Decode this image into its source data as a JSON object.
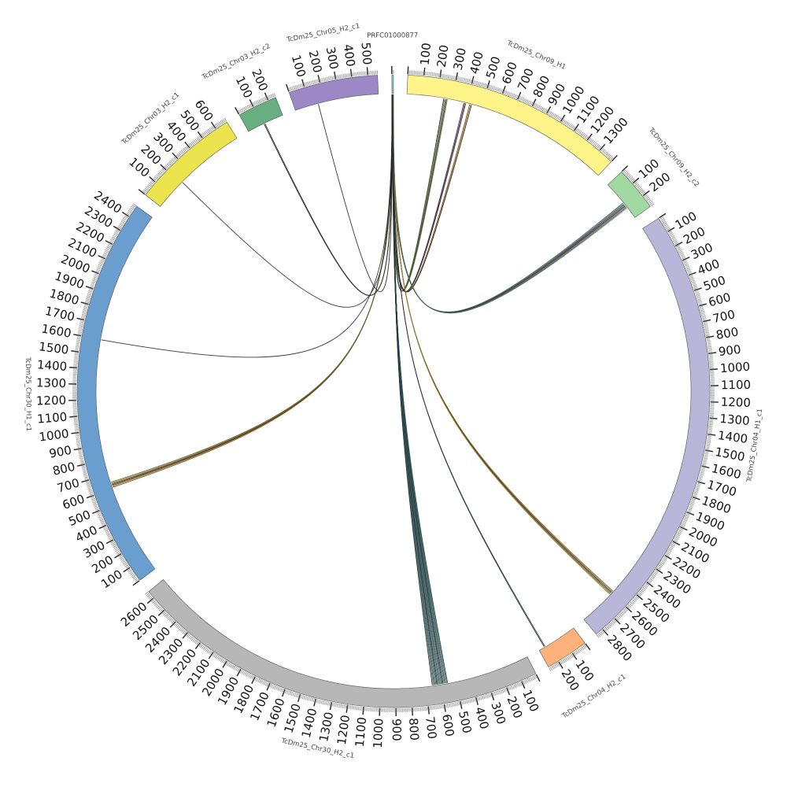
{
  "diagram": {
    "type": "circos",
    "segments": [
      {
        "name": "PRFC01000877",
        "length": 10,
        "color": "#8ecfc8",
        "ticks": []
      },
      {
        "name": "TcDm25_Chr09_H1",
        "length": 1400,
        "color": "#fff48a",
        "ticks": [
          "100",
          "200",
          "300",
          "400",
          "500",
          "600",
          "700",
          "800",
          "900",
          "1000",
          "1100",
          "1200",
          "1300"
        ]
      },
      {
        "name": "TcDm25_Chr09_H2_c2",
        "length": 280,
        "color": "#a2d8a2",
        "ticks": [
          "100",
          "200"
        ]
      },
      {
        "name": "TcDm25_Chr04_H1_c1",
        "length": 2850,
        "color": "#b8b6d9",
        "ticks": [
          "100",
          "200",
          "300",
          "400",
          "500",
          "600",
          "700",
          "800",
          "900",
          "1000",
          "1100",
          "1200",
          "1300",
          "1400",
          "1500",
          "1600",
          "1700",
          "1800",
          "1900",
          "2000",
          "2100",
          "2200",
          "2300",
          "2400",
          "2500",
          "2600",
          "2700",
          "2800"
        ]
      },
      {
        "name": "TcDm25_Chr04_H2_c1",
        "length": 270,
        "color": "#fdb27c",
        "ticks": [
          "100",
          "200"
        ]
      },
      {
        "name": "TcDm25_Chr30_H2_c1",
        "length": 2650,
        "color": "#b7b7b7",
        "ticks": [
          "100",
          "200",
          "300",
          "400",
          "500",
          "600",
          "700",
          "800",
          "900",
          "1000",
          "1100",
          "1200",
          "1300",
          "1400",
          "1500",
          "1600",
          "1700",
          "1800",
          "1900",
          "2000",
          "2100",
          "2200",
          "2300",
          "2400",
          "2500",
          "2600"
        ]
      },
      {
        "name": "TcDm25_Chr30_H1_c1",
        "length": 2480,
        "color": "#6a9ecf",
        "ticks": [
          "100",
          "200",
          "300",
          "400",
          "500",
          "600",
          "700",
          "800",
          "900",
          "1000",
          "1100",
          "1200",
          "1300",
          "1400",
          "1500",
          "1600",
          "1700",
          "1800",
          "1900",
          "2000",
          "2100",
          "2200",
          "2300",
          "2400"
        ]
      },
      {
        "name": "TcDm25_Chr03_H2_c1",
        "length": 680,
        "color": "#ece44f",
        "ticks": [
          "100",
          "200",
          "300",
          "400",
          "500",
          "600"
        ]
      },
      {
        "name": "TcDm25_Chr03_H2_c2",
        "length": 250,
        "color": "#69ae80",
        "ticks": [
          "100",
          "200"
        ]
      },
      {
        "name": "TcDm25_Chr05_H2_c1",
        "length": 560,
        "color": "#9b88c4",
        "ticks": [
          "100",
          "200",
          "300",
          "400",
          "500"
        ]
      }
    ],
    "links": [
      {
        "target": "TcDm25_Chr09_H1",
        "position": 260,
        "count": 5,
        "colors": [
          "#222222",
          "#4a7b45",
          "#7b5a2a"
        ]
      },
      {
        "target": "TcDm25_Chr09_H1",
        "position": 390,
        "count": 3,
        "colors": [
          "#1f3a6e",
          "#7b2a2a",
          "#222222"
        ]
      },
      {
        "target": "TcDm25_Chr09_H1",
        "position": 430,
        "count": 3,
        "colors": [
          "#7a3c1c",
          "#a0822c",
          "#222222"
        ]
      },
      {
        "target": "TcDm25_Chr09_H2_c2",
        "position": 180,
        "count": 8,
        "colors": [
          "#2f5a8a",
          "#4a7b45",
          "#1f3a6e",
          "#7b2a2a",
          "#222222",
          "#8a6d3b"
        ]
      },
      {
        "target": "TcDm25_Chr04_H1_c1",
        "position": 2600,
        "count": 6,
        "colors": [
          "#7b5a2a",
          "#a0822c",
          "#222222",
          "#4a5a2a"
        ]
      },
      {
        "target": "TcDm25_Chr04_H2_c1",
        "position": 230,
        "count": 2,
        "colors": [
          "#1f3a6e",
          "#222222"
        ]
      },
      {
        "target": "TcDm25_Chr30_H2_c1",
        "position": 610,
        "count": 18,
        "colors": [
          "#1c2d3c",
          "#2f5a6a",
          "#3c6e5a",
          "#223344",
          "#5a7a4a",
          "#112233"
        ]
      },
      {
        "target": "TcDm25_Chr30_H1_c1",
        "position": 630,
        "count": 7,
        "colors": [
          "#7a3c1c",
          "#a0822c",
          "#4a5a2a",
          "#222222"
        ]
      },
      {
        "target": "TcDm25_Chr30_H1_c1",
        "position": 1600,
        "count": 1,
        "colors": [
          "#222222"
        ]
      },
      {
        "target": "TcDm25_Chr03_H2_c1",
        "position": 220,
        "count": 1,
        "colors": [
          "#222222"
        ]
      },
      {
        "target": "TcDm25_Chr03_H2_c2",
        "position": 120,
        "count": 2,
        "colors": [
          "#222222"
        ]
      },
      {
        "target": "TcDm25_Chr05_H2_c1",
        "position": 160,
        "count": 1,
        "colors": [
          "#222222"
        ]
      }
    ]
  }
}
